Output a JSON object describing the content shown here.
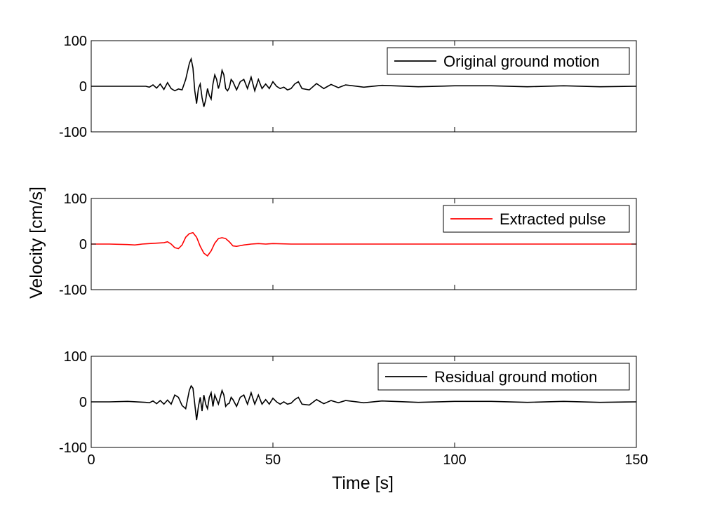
{
  "chart_data": {
    "type": "line",
    "xlabel": "Time [s]",
    "ylabel": "Velocity [cm/s]",
    "xlim": [
      0,
      150
    ],
    "xticks": [
      "0",
      "50",
      "100",
      "150"
    ],
    "yticks": [
      "-100",
      "0",
      "100"
    ],
    "grid": false,
    "legend_position": "top-right",
    "panels": [
      {
        "ylim": [
          -100,
          100
        ],
        "series": [
          {
            "name": "Original ground motion",
            "color": "#000000",
            "x": [
              0,
              5,
              10,
              15,
              16,
              17,
              18,
              19,
              20,
              21,
              22,
              23,
              24,
              25,
              26,
              27,
              27.5,
              28,
              28.5,
              29,
              29.5,
              30,
              30.5,
              31,
              31.5,
              32,
              32.5,
              33,
              33.5,
              34,
              34.5,
              35,
              35.5,
              36,
              36.5,
              37,
              37.5,
              38,
              38.5,
              39,
              40,
              41,
              42,
              43,
              44,
              45,
              46,
              47,
              48,
              49,
              50,
              51,
              52,
              53,
              54,
              55,
              56,
              57,
              58,
              60,
              62,
              64,
              66,
              68,
              70,
              75,
              80,
              90,
              100,
              110,
              120,
              130,
              140,
              150
            ],
            "y": [
              0,
              0,
              0,
              0,
              -2,
              3,
              -4,
              5,
              -7,
              8,
              -5,
              -10,
              -6,
              -8,
              15,
              50,
              60,
              40,
              -10,
              -38,
              -5,
              5,
              -25,
              -45,
              -30,
              -5,
              -20,
              -28,
              5,
              25,
              15,
              -5,
              10,
              35,
              25,
              -5,
              -10,
              -3,
              15,
              10,
              -8,
              10,
              15,
              -5,
              20,
              -10,
              15,
              -5,
              5,
              -5,
              10,
              0,
              -5,
              -2,
              -8,
              -5,
              5,
              10,
              -5,
              -8,
              6,
              -5,
              4,
              -3,
              3,
              -2,
              2,
              -1,
              1,
              1,
              -1,
              1,
              -1,
              0
            ]
          }
        ],
        "legend_entry": "Original ground motion"
      },
      {
        "ylim": [
          -100,
          100
        ],
        "series": [
          {
            "name": "Extracted pulse",
            "color": "#ff0000",
            "x": [
              0,
              5,
              10,
              12,
              14,
              16,
              18,
              20,
              21,
              22,
              23,
              24,
              25,
              26,
              27,
              28,
              29,
              30,
              31,
              32,
              33,
              34,
              35,
              36,
              37,
              38,
              39,
              40,
              42,
              44,
              46,
              48,
              50,
              55,
              60,
              70,
              80,
              90,
              100,
              110,
              120,
              130,
              140,
              150
            ],
            "y": [
              0,
              0,
              -1,
              -2,
              0,
              1,
              2,
              3,
              5,
              0,
              -8,
              -10,
              -2,
              15,
              23,
              25,
              15,
              -5,
              -20,
              -26,
              -15,
              2,
              12,
              14,
              12,
              5,
              -4,
              -5,
              -2,
              0,
              1,
              0,
              1,
              0,
              0,
              0,
              0,
              0,
              0,
              0,
              0,
              0,
              0,
              0
            ]
          }
        ],
        "legend_entry": "Extracted pulse"
      },
      {
        "ylim": [
          -100,
          100
        ],
        "series": [
          {
            "name": "Residual ground motion",
            "color": "#000000",
            "x": [
              0,
              5,
              10,
              15,
              16,
              17,
              18,
              19,
              20,
              21,
              22,
              23,
              24,
              25,
              26,
              27,
              27.5,
              28,
              28.5,
              29,
              29.5,
              30,
              30.5,
              31,
              31.5,
              32,
              32.5,
              33,
              33.5,
              34,
              34.5,
              35,
              35.5,
              36,
              36.5,
              37,
              37.5,
              38,
              38.5,
              39,
              40,
              41,
              42,
              43,
              44,
              45,
              46,
              47,
              48,
              49,
              50,
              51,
              52,
              53,
              54,
              55,
              56,
              57,
              58,
              60,
              62,
              64,
              66,
              68,
              70,
              75,
              80,
              90,
              100,
              110,
              120,
              130,
              140,
              150
            ],
            "y": [
              0,
              0,
              1,
              -1,
              -2,
              2,
              -4,
              3,
              -5,
              4,
              -5,
              15,
              10,
              -8,
              -15,
              25,
              35,
              30,
              -5,
              -40,
              -10,
              10,
              -20,
              15,
              -5,
              -15,
              10,
              20,
              -10,
              15,
              5,
              -5,
              10,
              25,
              15,
              -10,
              -5,
              -3,
              10,
              5,
              -10,
              10,
              15,
              -5,
              20,
              -5,
              15,
              -5,
              5,
              -5,
              8,
              0,
              -5,
              0,
              -5,
              -3,
              5,
              10,
              -5,
              -7,
              5,
              -4,
              3,
              -2,
              3,
              -2,
              2,
              -1,
              1,
              1,
              -1,
              1,
              -1,
              0
            ]
          }
        ],
        "legend_entry": "Residual ground motion"
      }
    ]
  }
}
